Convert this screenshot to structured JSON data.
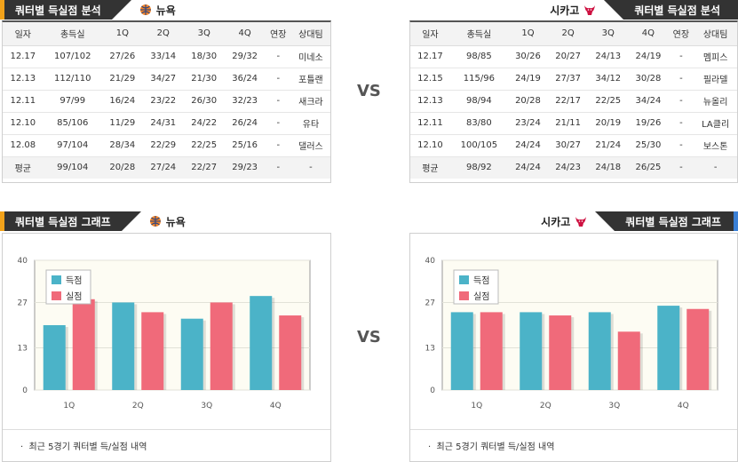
{
  "left_stats": {
    "title": "쿼터별 득실점 분석",
    "team": "뉴욕",
    "columns": [
      "일자",
      "총득실",
      "1Q",
      "2Q",
      "3Q",
      "4Q",
      "연장",
      "상대팀"
    ],
    "rows": [
      [
        "12.17",
        "107/102",
        "27/26",
        "33/14",
        "18/30",
        "29/32",
        "-",
        "미네소"
      ],
      [
        "12.13",
        "112/110",
        "21/29",
        "34/27",
        "21/30",
        "36/24",
        "-",
        "포틀랜"
      ],
      [
        "12.11",
        "97/99",
        "16/24",
        "23/22",
        "26/30",
        "32/23",
        "-",
        "새크라"
      ],
      [
        "12.10",
        "85/106",
        "11/29",
        "24/31",
        "24/22",
        "26/24",
        "-",
        "유타"
      ],
      [
        "12.08",
        "97/104",
        "28/34",
        "22/29",
        "22/25",
        "25/16",
        "-",
        "댈러스"
      ]
    ],
    "avg": [
      "평균",
      "99/104",
      "20/28",
      "27/24",
      "22/27",
      "29/23",
      "-",
      "-"
    ]
  },
  "right_stats": {
    "title": "쿼터별 득실점 분석",
    "team": "시카고",
    "columns": [
      "일자",
      "총득실",
      "1Q",
      "2Q",
      "3Q",
      "4Q",
      "연장",
      "상대팀"
    ],
    "rows": [
      [
        "12.17",
        "98/85",
        "30/26",
        "20/27",
        "24/13",
        "24/19",
        "-",
        "멤피스"
      ],
      [
        "12.15",
        "115/96",
        "24/19",
        "27/37",
        "34/12",
        "30/28",
        "-",
        "필라델"
      ],
      [
        "12.13",
        "98/94",
        "20/28",
        "22/17",
        "22/25",
        "34/24",
        "-",
        "뉴올리"
      ],
      [
        "12.11",
        "83/80",
        "23/24",
        "21/11",
        "20/19",
        "19/26",
        "-",
        "LA클리"
      ],
      [
        "12.10",
        "100/105",
        "24/24",
        "30/27",
        "21/24",
        "25/30",
        "-",
        "보스톤"
      ]
    ],
    "avg": [
      "평균",
      "98/92",
      "24/24",
      "24/23",
      "24/18",
      "26/25",
      "-",
      "-"
    ]
  },
  "vs_label": "VS",
  "left_graph": {
    "title": "쿼터별 득실점 그래프",
    "team": "뉴욕",
    "footnote": "최근 5경기 쿼터별 득/실점 내역"
  },
  "right_graph": {
    "title": "쿼터별 득실점 그래프",
    "team": "시카고",
    "footnote": "최근 5경기 쿼터별 득/실점 내역"
  },
  "colors": {
    "scored": "#4bb3c8",
    "allowed": "#f06a7a",
    "header": "#333333",
    "accent": "#f2a21a"
  },
  "chart_data": [
    {
      "type": "bar",
      "categories": [
        "1Q",
        "2Q",
        "3Q",
        "4Q"
      ],
      "series": [
        {
          "name": "득점",
          "values": [
            20,
            27,
            22,
            29
          ]
        },
        {
          "name": "실점",
          "values": [
            28,
            24,
            27,
            23
          ]
        }
      ],
      "yticks": [
        0,
        13,
        27,
        40
      ],
      "ylim": [
        0,
        40
      ],
      "legend": "top-left"
    },
    {
      "type": "bar",
      "categories": [
        "1Q",
        "2Q",
        "3Q",
        "4Q"
      ],
      "series": [
        {
          "name": "득점",
          "values": [
            24,
            24,
            24,
            26
          ]
        },
        {
          "name": "실점",
          "values": [
            24,
            23,
            18,
            25
          ]
        }
      ],
      "yticks": [
        0,
        13,
        27,
        40
      ],
      "ylim": [
        0,
        40
      ],
      "legend": "top-left"
    }
  ]
}
